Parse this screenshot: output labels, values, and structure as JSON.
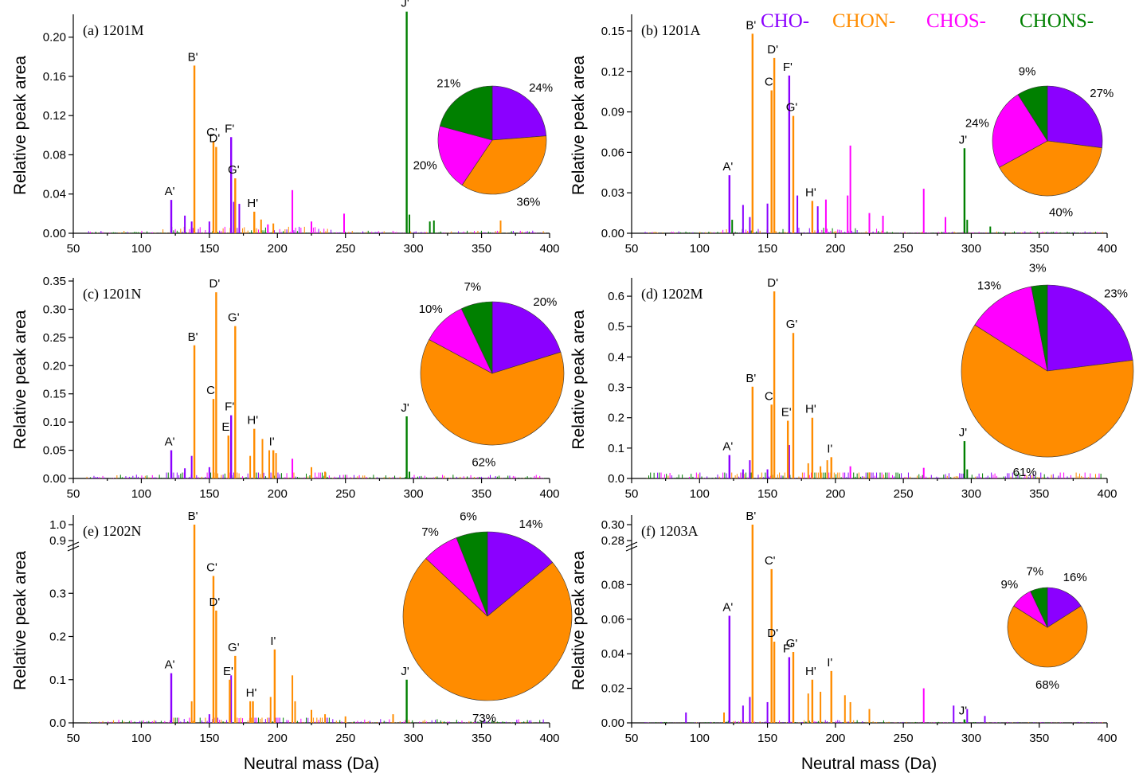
{
  "legend": [
    {
      "label": "CHO-",
      "color": "#8B00FF"
    },
    {
      "label": "CHON-",
      "color": "#FF8C00"
    },
    {
      "label": "CHOS-",
      "color": "#FF00FF"
    },
    {
      "label": "CHONS-",
      "color": "#008000"
    }
  ],
  "xlabel": "Neutral mass (Da)",
  "ylabel": "Relative peak area",
  "chart_data": [
    {
      "type": "bar",
      "panel": "(a) 1201M",
      "xlim": [
        50,
        400
      ],
      "ylim": [
        0,
        0.22
      ],
      "yticks": [
        "0.00",
        "0.04",
        "0.08",
        "0.12",
        "0.16",
        "0.20"
      ],
      "ytick_values": [
        0,
        0.04,
        0.08,
        0.12,
        0.16,
        0.2
      ],
      "xticks": [
        50,
        100,
        150,
        200,
        250,
        300,
        350,
        400
      ],
      "peaks": [
        {
          "label": "A'",
          "x": 122,
          "y": 0.034,
          "color": "#8B00FF"
        },
        {
          "label": "B'",
          "x": 139,
          "y": 0.171,
          "color": "#FF8C00"
        },
        {
          "label": "C'",
          "x": 153,
          "y": 0.094,
          "color": "#FF8C00"
        },
        {
          "label": "D'",
          "x": 155,
          "y": 0.088,
          "color": "#FF8C00"
        },
        {
          "label": "F'",
          "x": 166,
          "y": 0.098,
          "color": "#8B00FF"
        },
        {
          "label": "G'",
          "x": 169,
          "y": 0.056,
          "color": "#FF8C00"
        },
        {
          "label": "H'",
          "x": 183,
          "y": 0.022,
          "color": "#FF8C00"
        },
        {
          "label": "J'",
          "x": 295,
          "y": 0.226,
          "color": "#008000"
        }
      ],
      "minor": [
        [
          132,
          0.018,
          "#8B00FF"
        ],
        [
          137,
          0.012,
          "#8B00FF"
        ],
        [
          150,
          0.012,
          "#8B00FF"
        ],
        [
          168,
          0.032,
          "#8B00FF"
        ],
        [
          172,
          0.03,
          "#8B00FF"
        ],
        [
          188,
          0.014,
          "#FF8C00"
        ],
        [
          193,
          0.009,
          "#FF00FF"
        ],
        [
          197,
          0.01,
          "#FF8C00"
        ],
        [
          211,
          0.044,
          "#FF00FF"
        ],
        [
          225,
          0.012,
          "#FF00FF"
        ],
        [
          249,
          0.02,
          "#FF00FF"
        ],
        [
          297,
          0.019,
          "#008000"
        ],
        [
          312,
          0.012,
          "#008000"
        ],
        [
          315,
          0.013,
          "#008000"
        ],
        [
          364,
          0.013,
          "#FF8C00"
        ]
      ],
      "pie": {
        "cho": 24,
        "chon": 36,
        "chos": 20,
        "chons": 21,
        "labels": [
          "24%",
          "36%",
          "20%",
          "21%"
        ]
      }
    },
    {
      "type": "bar",
      "panel": "(b) 1201A",
      "xlim": [
        50,
        400
      ],
      "ylim": [
        0,
        0.16
      ],
      "yticks": [
        "0.00",
        "0.03",
        "0.06",
        "0.09",
        "0.12",
        "0.15"
      ],
      "ytick_values": [
        0,
        0.03,
        0.06,
        0.09,
        0.12,
        0.15
      ],
      "xticks": [
        50,
        100,
        150,
        200,
        250,
        300,
        350,
        400
      ],
      "peaks": [
        {
          "label": "A'",
          "x": 122,
          "y": 0.043,
          "color": "#8B00FF"
        },
        {
          "label": "B'",
          "x": 139,
          "y": 0.148,
          "color": "#FF8C00"
        },
        {
          "label": "C'",
          "x": 153,
          "y": 0.106,
          "color": "#FF8C00"
        },
        {
          "label": "D'",
          "x": 155,
          "y": 0.13,
          "color": "#FF8C00"
        },
        {
          "label": "F'",
          "x": 166,
          "y": 0.117,
          "color": "#8B00FF"
        },
        {
          "label": "G'",
          "x": 169,
          "y": 0.087,
          "color": "#FF8C00"
        },
        {
          "label": "H'",
          "x": 183,
          "y": 0.024,
          "color": "#FF8C00"
        },
        {
          "label": "J'",
          "x": 295,
          "y": 0.063,
          "color": "#008000"
        }
      ],
      "minor": [
        [
          124,
          0.01,
          "#008000"
        ],
        [
          132,
          0.021,
          "#8B00FF"
        ],
        [
          137,
          0.012,
          "#8B00FF"
        ],
        [
          150,
          0.022,
          "#8B00FF"
        ],
        [
          172,
          0.028,
          "#8B00FF"
        ],
        [
          187,
          0.02,
          "#8B00FF"
        ],
        [
          193,
          0.025,
          "#FF00FF"
        ],
        [
          209,
          0.028,
          "#FF00FF"
        ],
        [
          211,
          0.065,
          "#FF00FF"
        ],
        [
          225,
          0.015,
          "#FF00FF"
        ],
        [
          235,
          0.013,
          "#FF00FF"
        ],
        [
          265,
          0.033,
          "#FF00FF"
        ],
        [
          281,
          0.012,
          "#FF00FF"
        ],
        [
          297,
          0.01,
          "#008000"
        ],
        [
          314,
          0.005,
          "#008000"
        ]
      ],
      "pie": {
        "cho": 27,
        "chon": 40,
        "chos": 24,
        "chons": 9,
        "labels": [
          "27%",
          "40%",
          "24%",
          "9%"
        ]
      }
    },
    {
      "type": "bar",
      "panel": "(c) 1201N",
      "xlim": [
        50,
        400
      ],
      "ylim": [
        0,
        0.35
      ],
      "yticks": [
        "0.00",
        "0.05",
        "0.10",
        "0.15",
        "0.20",
        "0.25",
        "0.30",
        "0.35"
      ],
      "ytick_values": [
        0,
        0.05,
        0.1,
        0.15,
        0.2,
        0.25,
        0.3,
        0.35
      ],
      "xticks": [
        50,
        100,
        150,
        200,
        250,
        300,
        350,
        400
      ],
      "peaks": [
        {
          "label": "A'",
          "x": 122,
          "y": 0.05,
          "color": "#8B00FF"
        },
        {
          "label": "B'",
          "x": 139,
          "y": 0.236,
          "color": "#FF8C00"
        },
        {
          "label": "C'",
          "x": 153,
          "y": 0.141,
          "color": "#FF8C00"
        },
        {
          "label": "D'",
          "x": 155,
          "y": 0.33,
          "color": "#FF8C00"
        },
        {
          "label": "E'",
          "x": 164,
          "y": 0.076,
          "color": "#FF8C00"
        },
        {
          "label": "F'",
          "x": 166,
          "y": 0.112,
          "color": "#8B00FF"
        },
        {
          "label": "G'",
          "x": 169,
          "y": 0.27,
          "color": "#FF8C00"
        },
        {
          "label": "H'",
          "x": 183,
          "y": 0.088,
          "color": "#FF8C00"
        },
        {
          "label": "I'",
          "x": 197,
          "y": 0.05,
          "color": "#FF8C00"
        },
        {
          "label": "J'",
          "x": 295,
          "y": 0.11,
          "color": "#008000"
        }
      ],
      "minor": [
        [
          132,
          0.018,
          "#8B00FF"
        ],
        [
          137,
          0.04,
          "#8B00FF"
        ],
        [
          150,
          0.02,
          "#8B00FF"
        ],
        [
          180,
          0.04,
          "#FF8C00"
        ],
        [
          189,
          0.07,
          "#FF8C00"
        ],
        [
          194,
          0.05,
          "#FF8C00"
        ],
        [
          199,
          0.045,
          "#FF8C00"
        ],
        [
          211,
          0.035,
          "#FF00FF"
        ],
        [
          225,
          0.02,
          "#FF8C00"
        ],
        [
          235,
          0.012,
          "#FF8C00"
        ],
        [
          297,
          0.012,
          "#008000"
        ]
      ],
      "pie": {
        "cho": 20,
        "chon": 62,
        "chos": 10,
        "chons": 7,
        "labels": [
          "20%",
          "62%",
          "10%",
          "7%"
        ]
      }
    },
    {
      "type": "bar",
      "panel": "(d) 1202M",
      "xlim": [
        50,
        400
      ],
      "ylim": [
        0,
        0.65
      ],
      "yticks": [
        "0.0",
        "0.1",
        "0.2",
        "0.3",
        "0.4",
        "0.5",
        "0.6"
      ],
      "ytick_values": [
        0,
        0.1,
        0.2,
        0.3,
        0.4,
        0.5,
        0.6
      ],
      "xticks": [
        50,
        100,
        150,
        200,
        250,
        300,
        350,
        400
      ],
      "peaks": [
        {
          "label": "A'",
          "x": 122,
          "y": 0.077,
          "color": "#8B00FF"
        },
        {
          "label": "B'",
          "x": 139,
          "y": 0.302,
          "color": "#FF8C00"
        },
        {
          "label": "C'",
          "x": 153,
          "y": 0.243,
          "color": "#FF8C00"
        },
        {
          "label": "D'",
          "x": 155,
          "y": 0.616,
          "color": "#FF8C00"
        },
        {
          "label": "E'",
          "x": 165,
          "y": 0.19,
          "color": "#FF8C00"
        },
        {
          "label": "G'",
          "x": 169,
          "y": 0.479,
          "color": "#FF8C00"
        },
        {
          "label": "H'",
          "x": 183,
          "y": 0.2,
          "color": "#FF8C00"
        },
        {
          "label": "I'",
          "x": 197,
          "y": 0.07,
          "color": "#FF8C00"
        },
        {
          "label": "J'",
          "x": 295,
          "y": 0.123,
          "color": "#008000"
        }
      ],
      "minor": [
        [
          132,
          0.03,
          "#8B00FF"
        ],
        [
          137,
          0.06,
          "#8B00FF"
        ],
        [
          150,
          0.03,
          "#8B00FF"
        ],
        [
          166,
          0.11,
          "#8B00FF"
        ],
        [
          180,
          0.05,
          "#FF8C00"
        ],
        [
          189,
          0.04,
          "#FF8C00"
        ],
        [
          194,
          0.06,
          "#FF8C00"
        ],
        [
          211,
          0.04,
          "#FF00FF"
        ],
        [
          225,
          0.02,
          "#FF8C00"
        ],
        [
          265,
          0.035,
          "#FF00FF"
        ],
        [
          297,
          0.03,
          "#008000"
        ]
      ],
      "pie": {
        "cho": 23,
        "chon": 61,
        "chos": 13,
        "chons": 3,
        "labels": [
          "23%",
          "61%",
          "13%",
          "3%"
        ]
      }
    },
    {
      "type": "bar",
      "panel": "(e) 1202N",
      "xlim": [
        50,
        400
      ],
      "ylim": [
        0,
        0.4
      ],
      "axis_break": {
        "lower_max": 0.4,
        "upper_min": 0.9,
        "upper_max": 1.0
      },
      "yticks": [
        "0.0",
        "0.1",
        "0.2",
        "0.3",
        "0.9",
        "1.0"
      ],
      "ytick_values": [
        0,
        0.1,
        0.2,
        0.3,
        0.9,
        1.0
      ],
      "xticks": [
        50,
        100,
        150,
        200,
        250,
        300,
        350,
        400
      ],
      "peaks": [
        {
          "label": "A'",
          "x": 122,
          "y": 0.115,
          "color": "#8B00FF"
        },
        {
          "label": "B'",
          "x": 139,
          "y": 1.0,
          "color": "#FF8C00"
        },
        {
          "label": "C'",
          "x": 153,
          "y": 0.34,
          "color": "#FF8C00"
        },
        {
          "label": "D'",
          "x": 155,
          "y": 0.26,
          "color": "#FF8C00"
        },
        {
          "label": "E'",
          "x": 165,
          "y": 0.1,
          "color": "#FF8C00"
        },
        {
          "label": "G'",
          "x": 169,
          "y": 0.155,
          "color": "#FF8C00"
        },
        {
          "label": "H'",
          "x": 182,
          "y": 0.05,
          "color": "#FF8C00"
        },
        {
          "label": "I'",
          "x": 198,
          "y": 0.17,
          "color": "#FF8C00"
        },
        {
          "label": "J'",
          "x": 295,
          "y": 0.1,
          "color": "#008000"
        }
      ],
      "minor": [
        [
          137,
          0.05,
          "#FF8C00"
        ],
        [
          150,
          0.02,
          "#8B00FF"
        ],
        [
          166,
          0.11,
          "#8B00FF"
        ],
        [
          180,
          0.05,
          "#FF8C00"
        ],
        [
          195,
          0.06,
          "#FF8C00"
        ],
        [
          211,
          0.11,
          "#FF8C00"
        ],
        [
          213,
          0.05,
          "#FF8C00"
        ],
        [
          225,
          0.03,
          "#FF8C00"
        ],
        [
          235,
          0.02,
          "#FF8C00"
        ],
        [
          250,
          0.015,
          "#FF8C00"
        ],
        [
          285,
          0.02,
          "#FF8C00"
        ]
      ],
      "pie": {
        "cho": 14,
        "chon": 73,
        "chos": 7,
        "chons": 6,
        "labels": [
          "14%",
          "73%",
          "7%",
          "6%"
        ]
      }
    },
    {
      "type": "bar",
      "panel": "(f) 1203A",
      "xlim": [
        50,
        400
      ],
      "ylim": [
        0,
        0.1
      ],
      "axis_break": {
        "lower_max": 0.1,
        "upper_min": 0.28,
        "upper_max": 0.3
      },
      "yticks": [
        "0.00",
        "0.02",
        "0.04",
        "0.06",
        "0.08",
        "0.28",
        "0.30"
      ],
      "ytick_values": [
        0,
        0.02,
        0.04,
        0.06,
        0.08,
        0.28,
        0.3
      ],
      "xticks": [
        50,
        100,
        150,
        200,
        250,
        300,
        350,
        400
      ],
      "peaks": [
        {
          "label": "A'",
          "x": 122,
          "y": 0.062,
          "color": "#8B00FF"
        },
        {
          "label": "B'",
          "x": 139,
          "y": 0.3,
          "color": "#FF8C00"
        },
        {
          "label": "C'",
          "x": 153,
          "y": 0.089,
          "color": "#FF8C00"
        },
        {
          "label": "D'",
          "x": 155,
          "y": 0.047,
          "color": "#FF8C00"
        },
        {
          "label": "F'",
          "x": 166,
          "y": 0.038,
          "color": "#8B00FF"
        },
        {
          "label": "G'",
          "x": 169,
          "y": 0.041,
          "color": "#FF8C00"
        },
        {
          "label": "H'",
          "x": 183,
          "y": 0.025,
          "color": "#FF8C00"
        },
        {
          "label": "I'",
          "x": 197,
          "y": 0.03,
          "color": "#FF8C00"
        },
        {
          "label": "J'",
          "x": 295,
          "y": 0.002,
          "color": "#008000"
        }
      ],
      "minor": [
        [
          90,
          0.006,
          "#8B00FF"
        ],
        [
          118,
          0.006,
          "#FF8C00"
        ],
        [
          132,
          0.01,
          "#8B00FF"
        ],
        [
          137,
          0.015,
          "#8B00FF"
        ],
        [
          150,
          0.012,
          "#8B00FF"
        ],
        [
          180,
          0.017,
          "#FF8C00"
        ],
        [
          189,
          0.018,
          "#FF8C00"
        ],
        [
          207,
          0.016,
          "#FF8C00"
        ],
        [
          211,
          0.012,
          "#FF8C00"
        ],
        [
          225,
          0.008,
          "#FF8C00"
        ],
        [
          265,
          0.02,
          "#FF00FF"
        ],
        [
          287,
          0.01,
          "#8B00FF"
        ],
        [
          297,
          0.008,
          "#8B00FF"
        ],
        [
          310,
          0.004,
          "#8B00FF"
        ]
      ],
      "pie": {
        "cho": 16,
        "chon": 68,
        "chos": 9,
        "chons": 7,
        "labels": [
          "16%",
          "68%",
          "9%",
          "7%"
        ]
      }
    }
  ]
}
